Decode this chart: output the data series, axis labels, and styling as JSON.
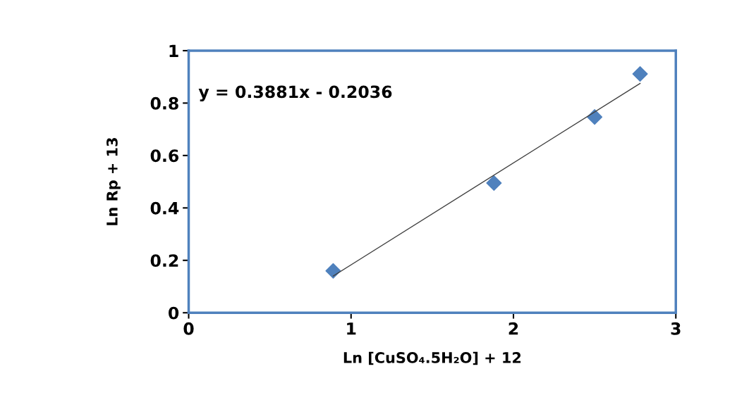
{
  "chart_data": {
    "type": "scatter",
    "xlabel": "Ln [CuSO₄.5H₂O] + 12",
    "ylabel": "Ln Rp + 13",
    "grid": false,
    "x": [
      0.89,
      1.88,
      2.5,
      2.78
    ],
    "series": [
      {
        "color": "#4f81bd",
        "marker": "diamond",
        "values": [
          0.16,
          0.495,
          0.747,
          0.911
        ]
      },
      {
        "type": "line",
        "marker": "none",
        "color": "#404040",
        "x": [
          0.89,
          2.78
        ],
        "values": [
          0.14,
          0.875
        ]
      }
    ],
    "annotations": [
      "y = 0.3881x - 0.2036"
    ],
    "xlim": [
      0,
      3
    ],
    "xticks": [
      0,
      1,
      2,
      3
    ],
    "ylim": [
      0,
      1
    ],
    "yticks": [
      0,
      0.2,
      0.4,
      0.6,
      0.8,
      1
    ]
  }
}
